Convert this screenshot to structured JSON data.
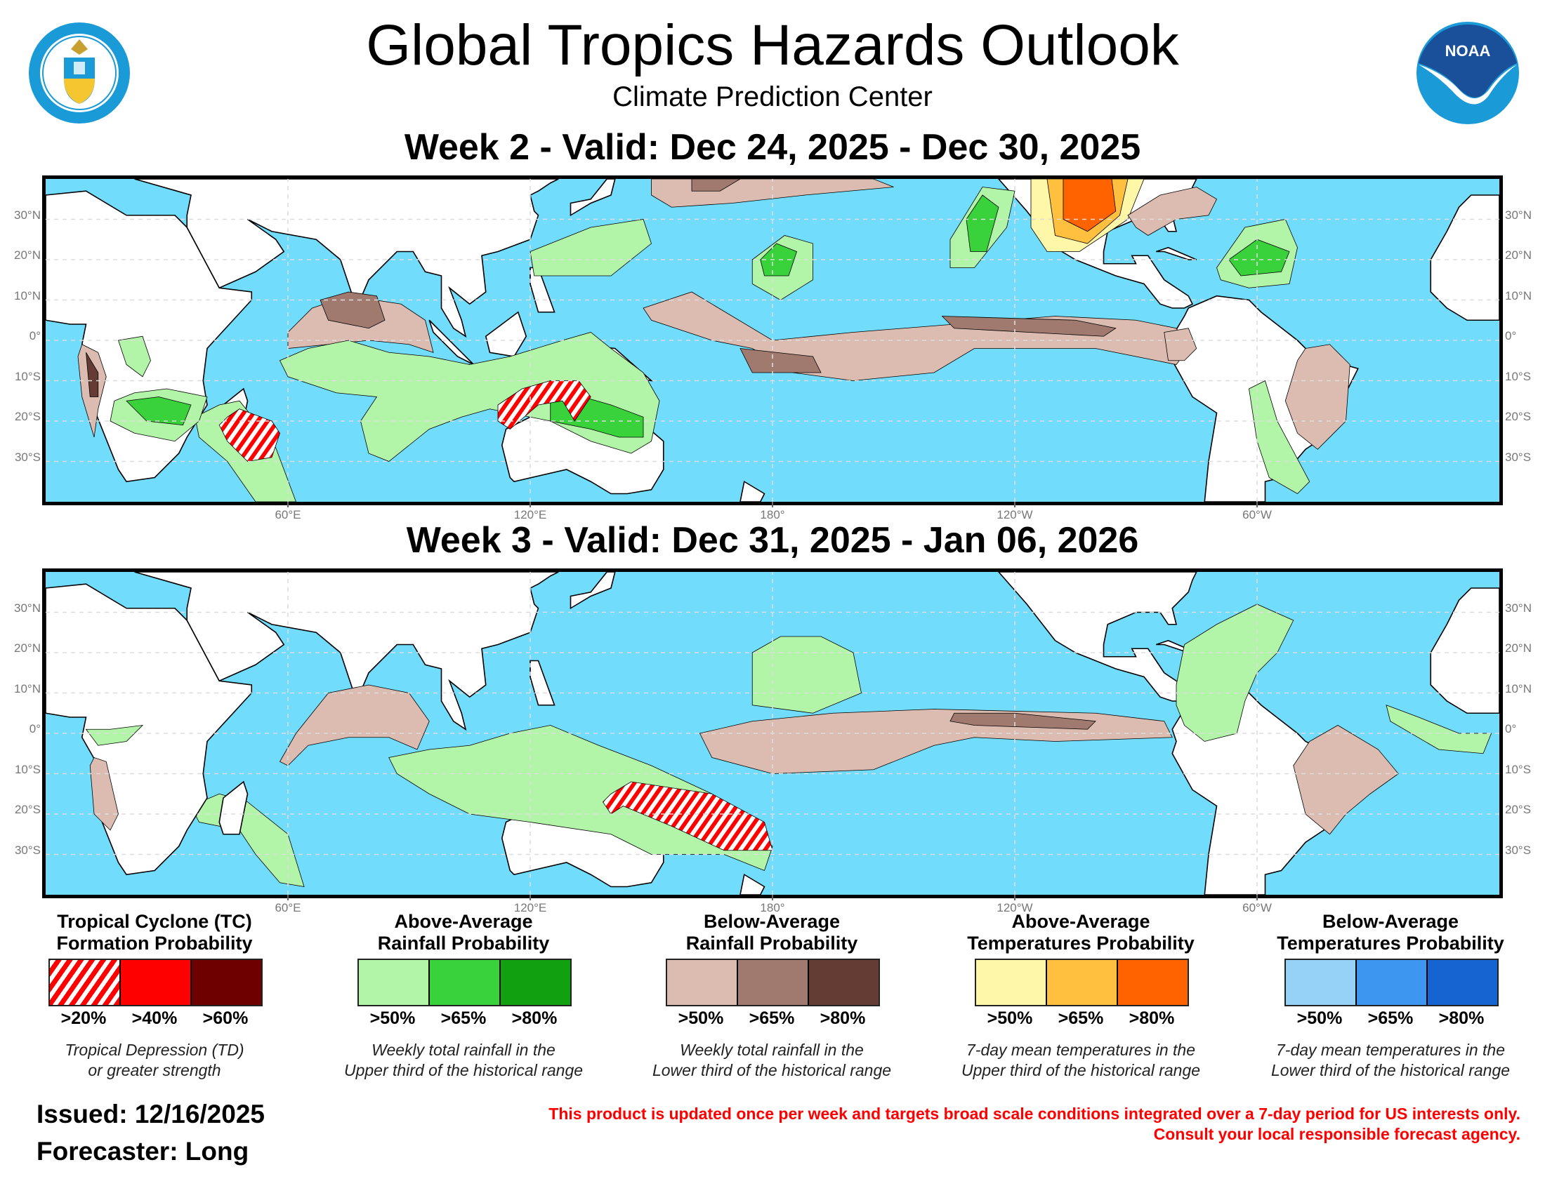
{
  "header": {
    "title": "Global Tropics Hazards Outlook",
    "subtitle": "Climate Prediction Center",
    "logo_left": "DEPARTMENT OF COMMERCE - UNITED STATES OF AMERICA",
    "logo_right": "NOAA"
  },
  "maps": [
    {
      "heading": "Week 2 - Valid: Dec 24, 2025 - Dec 30, 2025"
    },
    {
      "heading": "Week 3 - Valid: Dec 31, 2025 - Jan 06, 2026"
    }
  ],
  "axes": {
    "lat_labels": [
      "30°N",
      "20°N",
      "10°N",
      "0°",
      "10°S",
      "20°S",
      "30°S"
    ],
    "lon_labels": [
      "60°E",
      "120°E",
      "180°",
      "120°W",
      "60°W"
    ]
  },
  "legend": [
    {
      "title1": "Tropical Cyclone (TC)",
      "title2": "Formation Probability",
      "labels": [
        ">20%",
        ">40%",
        ">60%"
      ],
      "colors": [
        "hatch",
        "#ff0000",
        "#6e0000"
      ],
      "desc1": "Tropical Depression (TD)",
      "desc2": "or greater strength"
    },
    {
      "title1": "Above-Average",
      "title2": "Rainfall Probability",
      "labels": [
        ">50%",
        ">65%",
        ">80%"
      ],
      "colors": [
        "#b3f5a8",
        "#3ad23a",
        "#10a010"
      ],
      "desc1": "Weekly total rainfall in the",
      "desc2": "Upper third of the historical range"
    },
    {
      "title1": "Below-Average",
      "title2": "Rainfall Probability",
      "labels": [
        ">50%",
        ">65%",
        ">80%"
      ],
      "colors": [
        "#dcbcb1",
        "#a07a6e",
        "#643c33"
      ],
      "desc1": "Weekly total rainfall in the",
      "desc2": "Lower third of the historical range"
    },
    {
      "title1": "Above-Average",
      "title2": "Temperatures Probability",
      "labels": [
        ">50%",
        ">65%",
        ">80%"
      ],
      "colors": [
        "#fff7a8",
        "#ffc040",
        "#ff6300"
      ],
      "desc1": "7-day mean temperatures in the",
      "desc2": "Upper third of the historical range"
    },
    {
      "title1": "Below-Average",
      "title2": "Temperatures Probability",
      "labels": [
        ">50%",
        ">65%",
        ">80%"
      ],
      "colors": [
        "#96d2f8",
        "#3d96f0",
        "#1664d2"
      ],
      "desc1": "7-day mean temperatures in the",
      "desc2": "Lower third of the historical range"
    }
  ],
  "footer": {
    "issued": "Issued: 12/16/2025",
    "forecaster": "Forecaster: Long",
    "disclaimer1": "This product is updated once per week and targets broad scale conditions integrated over a 7-day period for US interests only.",
    "disclaimer2": "Consult your local responsible forecast agency."
  },
  "colors": {
    "ocean": "#72dcfc",
    "land": "#ffffff",
    "hatch_red": "#ff0000"
  }
}
